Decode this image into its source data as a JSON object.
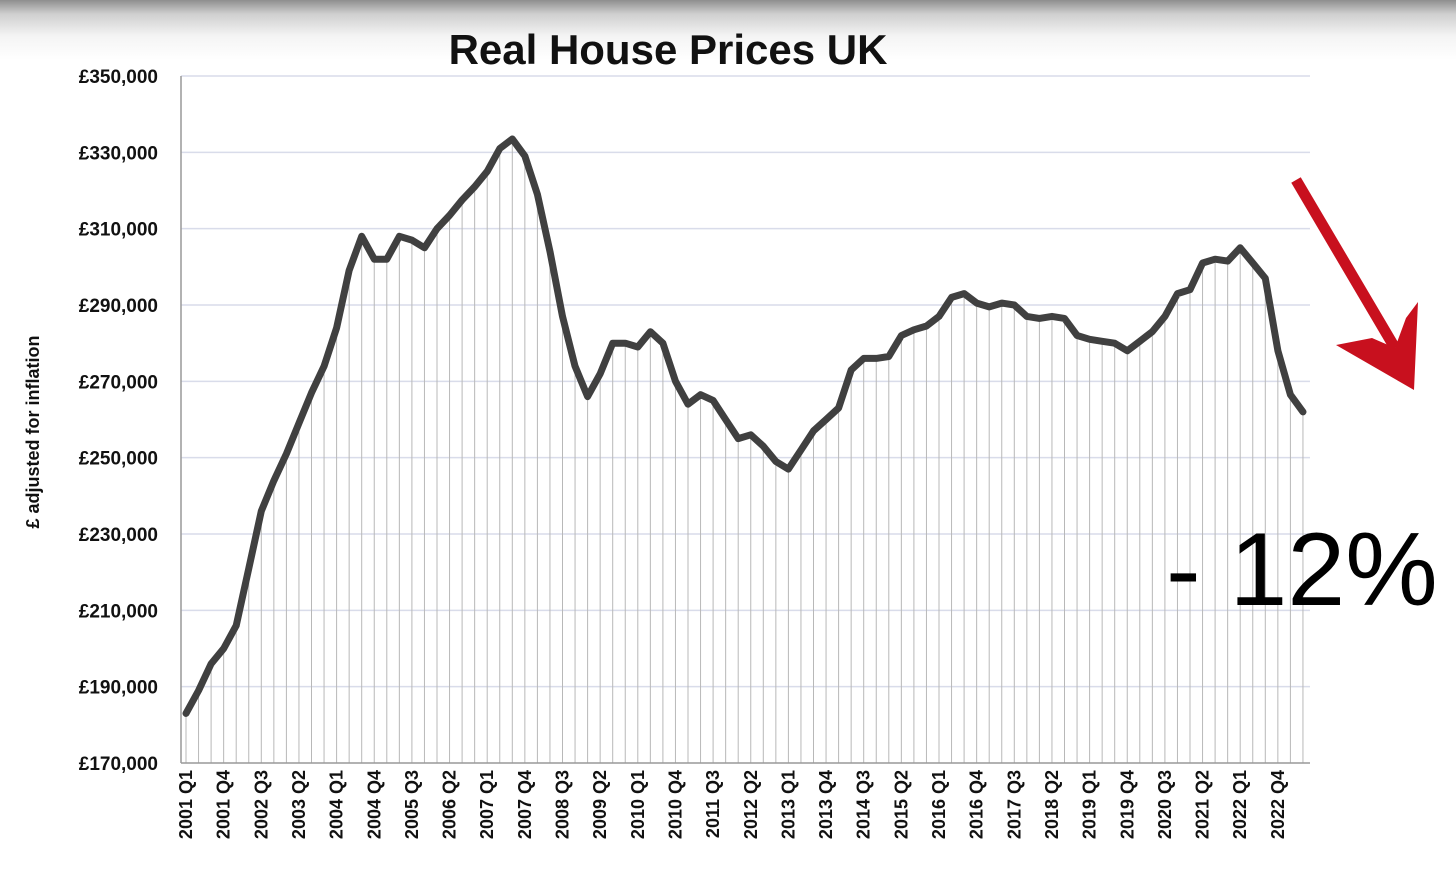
{
  "colors": {
    "line": "#404040",
    "gridline": "#d9dcea",
    "dropline": "#b8b8b8",
    "axis": "#999999",
    "arrow": "#c8101e",
    "text": "#111111"
  },
  "chart_data": {
    "type": "line",
    "title": "Real House Prices UK",
    "xlabel": "",
    "ylabel": "£ adjusted for inflation",
    "ylim": [
      170000,
      350000
    ],
    "yticks": [
      "£170,000",
      "£190,000",
      "£210,000",
      "£230,000",
      "£250,000",
      "£270,000",
      "£290,000",
      "£310,000",
      "£330,000",
      "£350,000"
    ],
    "grid": true,
    "drop_lines": true,
    "xticks": [
      "2001 Q1",
      "2001 Q4",
      "2002 Q3",
      "2003 Q2",
      "2004 Q1",
      "2004 Q4",
      "2005 Q3",
      "2006 Q2",
      "2007 Q1",
      "2007 Q4",
      "2008 Q3",
      "2009 Q2",
      "2010 Q1",
      "2010 Q4",
      "2011 Q3",
      "2012 Q2",
      "2013 Q1",
      "2013 Q4",
      "2014 Q3",
      "2015 Q2",
      "2016 Q1",
      "2016 Q4",
      "2017 Q3",
      "2018 Q2",
      "2019 Q1",
      "2019 Q4",
      "2020 Q3",
      "2021 Q2",
      "2022 Q1",
      "2022 Q4"
    ],
    "series": [
      {
        "values": [
          183000,
          189000,
          196000,
          200000,
          206000,
          221000,
          236000,
          244000,
          251000,
          259000,
          267000,
          274000,
          284000,
          299000,
          308000,
          302000,
          302000,
          308000,
          307000,
          305000,
          310000,
          313500,
          317500,
          321000,
          325000,
          331000,
          333500,
          329000,
          319000,
          304000,
          287000,
          274000,
          266000,
          272000,
          280000,
          280000,
          279000,
          283000,
          280000,
          270000,
          264000,
          266500,
          265000,
          260000,
          255000,
          256000,
          253000,
          249000,
          247000,
          252000,
          257000,
          260000,
          263000,
          273000,
          276000,
          276000,
          276500,
          282000,
          283500,
          284500,
          287000,
          292000,
          293000,
          290500,
          289500,
          290500,
          290000,
          287000,
          286500,
          287000,
          286500,
          282000,
          281000,
          280500,
          280000,
          278000,
          280500,
          283000,
          287000,
          293000,
          294000,
          301000,
          302000,
          301500,
          305000,
          301000,
          297000,
          278000,
          266500,
          262000
        ]
      }
    ],
    "annotations": [
      {
        "type": "text",
        "text": "- 12%"
      },
      {
        "type": "arrow",
        "direction": "down-right",
        "color": "#c8101e"
      }
    ]
  }
}
